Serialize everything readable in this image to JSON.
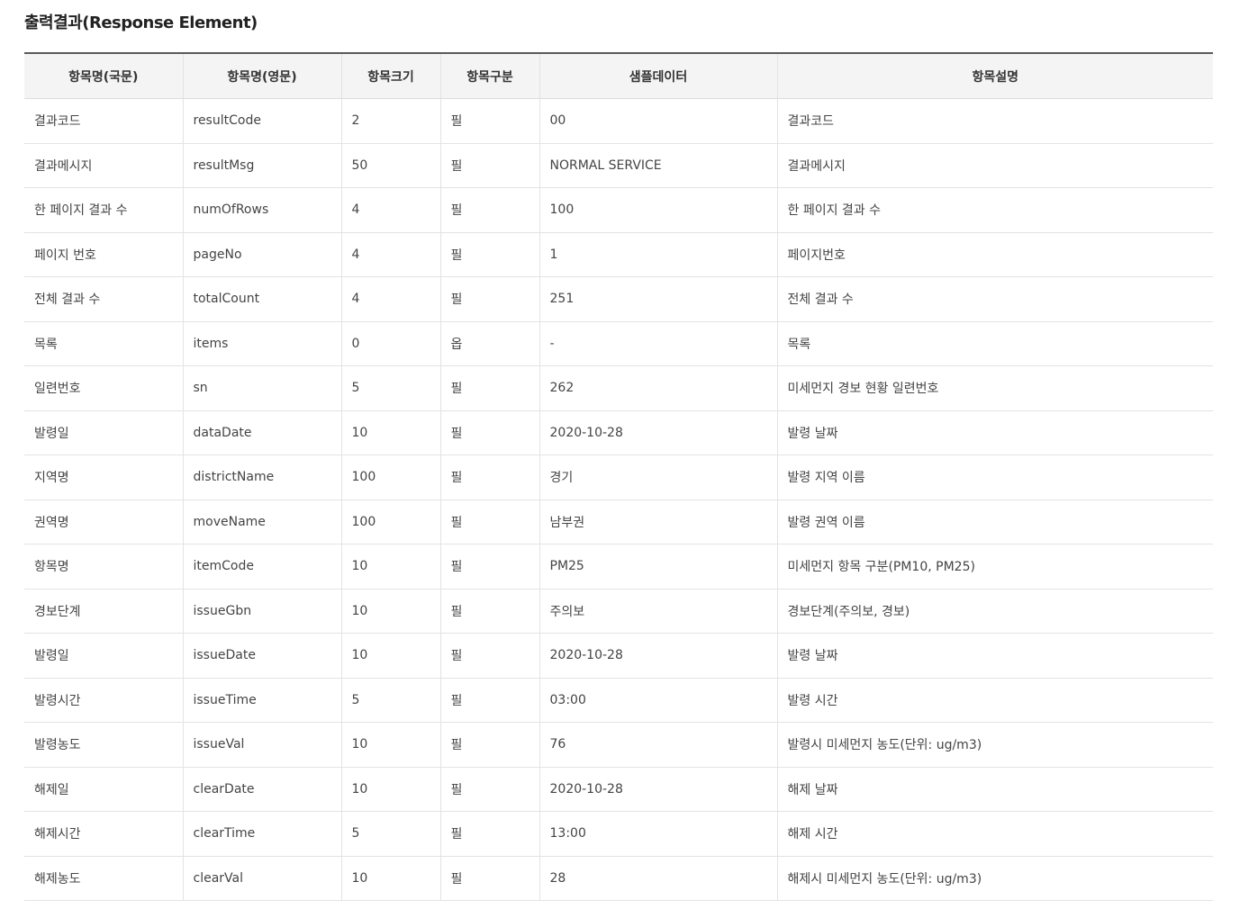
{
  "title": "출력결과(Response Element)",
  "columns": [
    "항목명(국문)",
    "항목명(영문)",
    "항목크기",
    "항목구분",
    "샘플데이터",
    "항목설명"
  ],
  "rows": [
    [
      "결과코드",
      "resultCode",
      "2",
      "필",
      "00",
      "결과코드"
    ],
    [
      "결과메시지",
      "resultMsg",
      "50",
      "필",
      "NORMAL SERVICE",
      "결과메시지"
    ],
    [
      "한 페이지 결과 수",
      "numOfRows",
      "4",
      "필",
      "100",
      "한 페이지 결과 수"
    ],
    [
      "페이지 번호",
      "pageNo",
      "4",
      "필",
      "1",
      "페이지번호"
    ],
    [
      "전체 결과 수",
      "totalCount",
      "4",
      "필",
      "251",
      "전체 결과 수"
    ],
    [
      "목록",
      "items",
      "0",
      "옵",
      "-",
      "목록"
    ],
    [
      "일련번호",
      "sn",
      "5",
      "필",
      "262",
      "미세먼지 경보 현황 일련번호"
    ],
    [
      "발령일",
      "dataDate",
      "10",
      "필",
      "2020-10-28",
      "발령 날짜"
    ],
    [
      "지역명",
      "districtName",
      "100",
      "필",
      "경기",
      "발령 지역 이름"
    ],
    [
      "권역명",
      "moveName",
      "100",
      "필",
      "남부권",
      "발령 권역 이름"
    ],
    [
      "항목명",
      "itemCode",
      "10",
      "필",
      "PM25",
      "미세먼지 항목 구분(PM10, PM25)"
    ],
    [
      "경보단계",
      "issueGbn",
      "10",
      "필",
      "주의보",
      "경보단계(주의보, 경보)"
    ],
    [
      "발령일",
      "issueDate",
      "10",
      "필",
      "2020-10-28",
      "발령 날짜"
    ],
    [
      "발령시간",
      "issueTime",
      "5",
      "필",
      "03:00",
      "발령 시간"
    ],
    [
      "발령농도",
      "issueVal",
      "10",
      "필",
      "76",
      "발령시 미세먼지 농도(단위: ug/m3)"
    ],
    [
      "해제일",
      "clearDate",
      "10",
      "필",
      "2020-10-28",
      "해제 날짜"
    ],
    [
      "해제시간",
      "clearTime",
      "5",
      "필",
      "13:00",
      "해제 시간"
    ],
    [
      "해제농도",
      "clearVal",
      "10",
      "필",
      "28",
      "해제시 미세먼지 농도(단위: ug/m3)"
    ]
  ]
}
